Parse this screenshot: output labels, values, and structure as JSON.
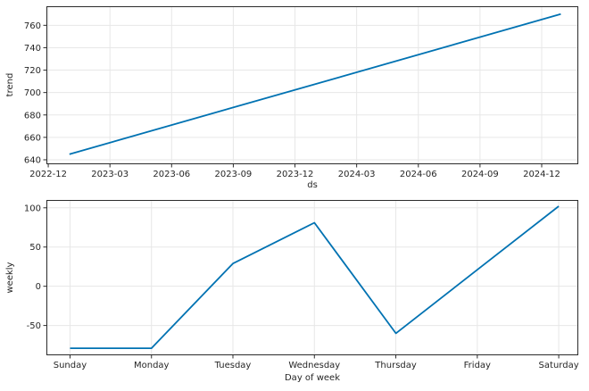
{
  "figure": {
    "background": "#ffffff",
    "line_color": "#0072B2",
    "grid_color": "#e7e7e7",
    "axis_color": "#2b2b2b",
    "tick_label_color": "#262626",
    "tick_font_px": 10,
    "line_width": 1.8
  },
  "chart_data": [
    {
      "type": "line",
      "title": "",
      "xlabel": "ds",
      "ylabel": "trend",
      "x_unit": "months since 2022-12",
      "x_tick_labels": [
        "2022-12",
        "2023-03",
        "2023-06",
        "2023-09",
        "2023-12",
        "2024-03",
        "2024-06",
        "2024-09",
        "2024-12"
      ],
      "x_tick_positions": [
        0,
        3,
        6,
        9,
        12,
        15,
        18,
        21,
        24
      ],
      "xlim": [
        -0.09,
        25.78
      ],
      "y_ticks": [
        640,
        660,
        680,
        700,
        720,
        740,
        760
      ],
      "ylim": [
        636,
        777
      ],
      "grid": true,
      "legend": "none",
      "series": [
        {
          "name": "trend",
          "points": [
            [
              1.03,
              645
            ],
            [
              24.93,
              770
            ]
          ]
        }
      ]
    },
    {
      "type": "line",
      "title": "",
      "xlabel": "Day of week",
      "ylabel": "weekly",
      "categories": [
        "Sunday",
        "Monday",
        "Tuesday",
        "Wednesday",
        "Thursday",
        "Friday",
        "Saturday"
      ],
      "values": [
        -79,
        -79,
        29,
        81,
        -60,
        21,
        102
      ],
      "xlim": [
        -0.29,
        6.24
      ],
      "y_ticks": [
        -50,
        0,
        50,
        100
      ],
      "ylim": [
        -88,
        110
      ],
      "grid": true,
      "legend": "none",
      "series": [
        {
          "name": "weekly",
          "points": [
            [
              0,
              -79
            ],
            [
              1,
              -79
            ],
            [
              2,
              29
            ],
            [
              3,
              81
            ],
            [
              4,
              -60
            ],
            [
              5,
              21
            ],
            [
              6,
              102
            ]
          ]
        }
      ]
    }
  ]
}
